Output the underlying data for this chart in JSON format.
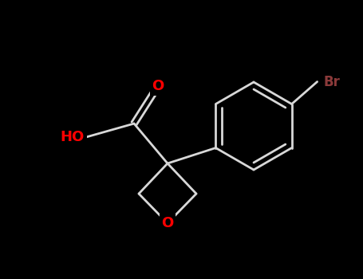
{
  "background_color": "#000000",
  "bond_color": "#d8d8d8",
  "bond_width": 2.0,
  "atom_colors": {
    "O": "#ff0000",
    "Br": "#8b3a3a",
    "C": "#cccccc"
  },
  "figsize": [
    4.55,
    3.5
  ],
  "dpi": 100
}
